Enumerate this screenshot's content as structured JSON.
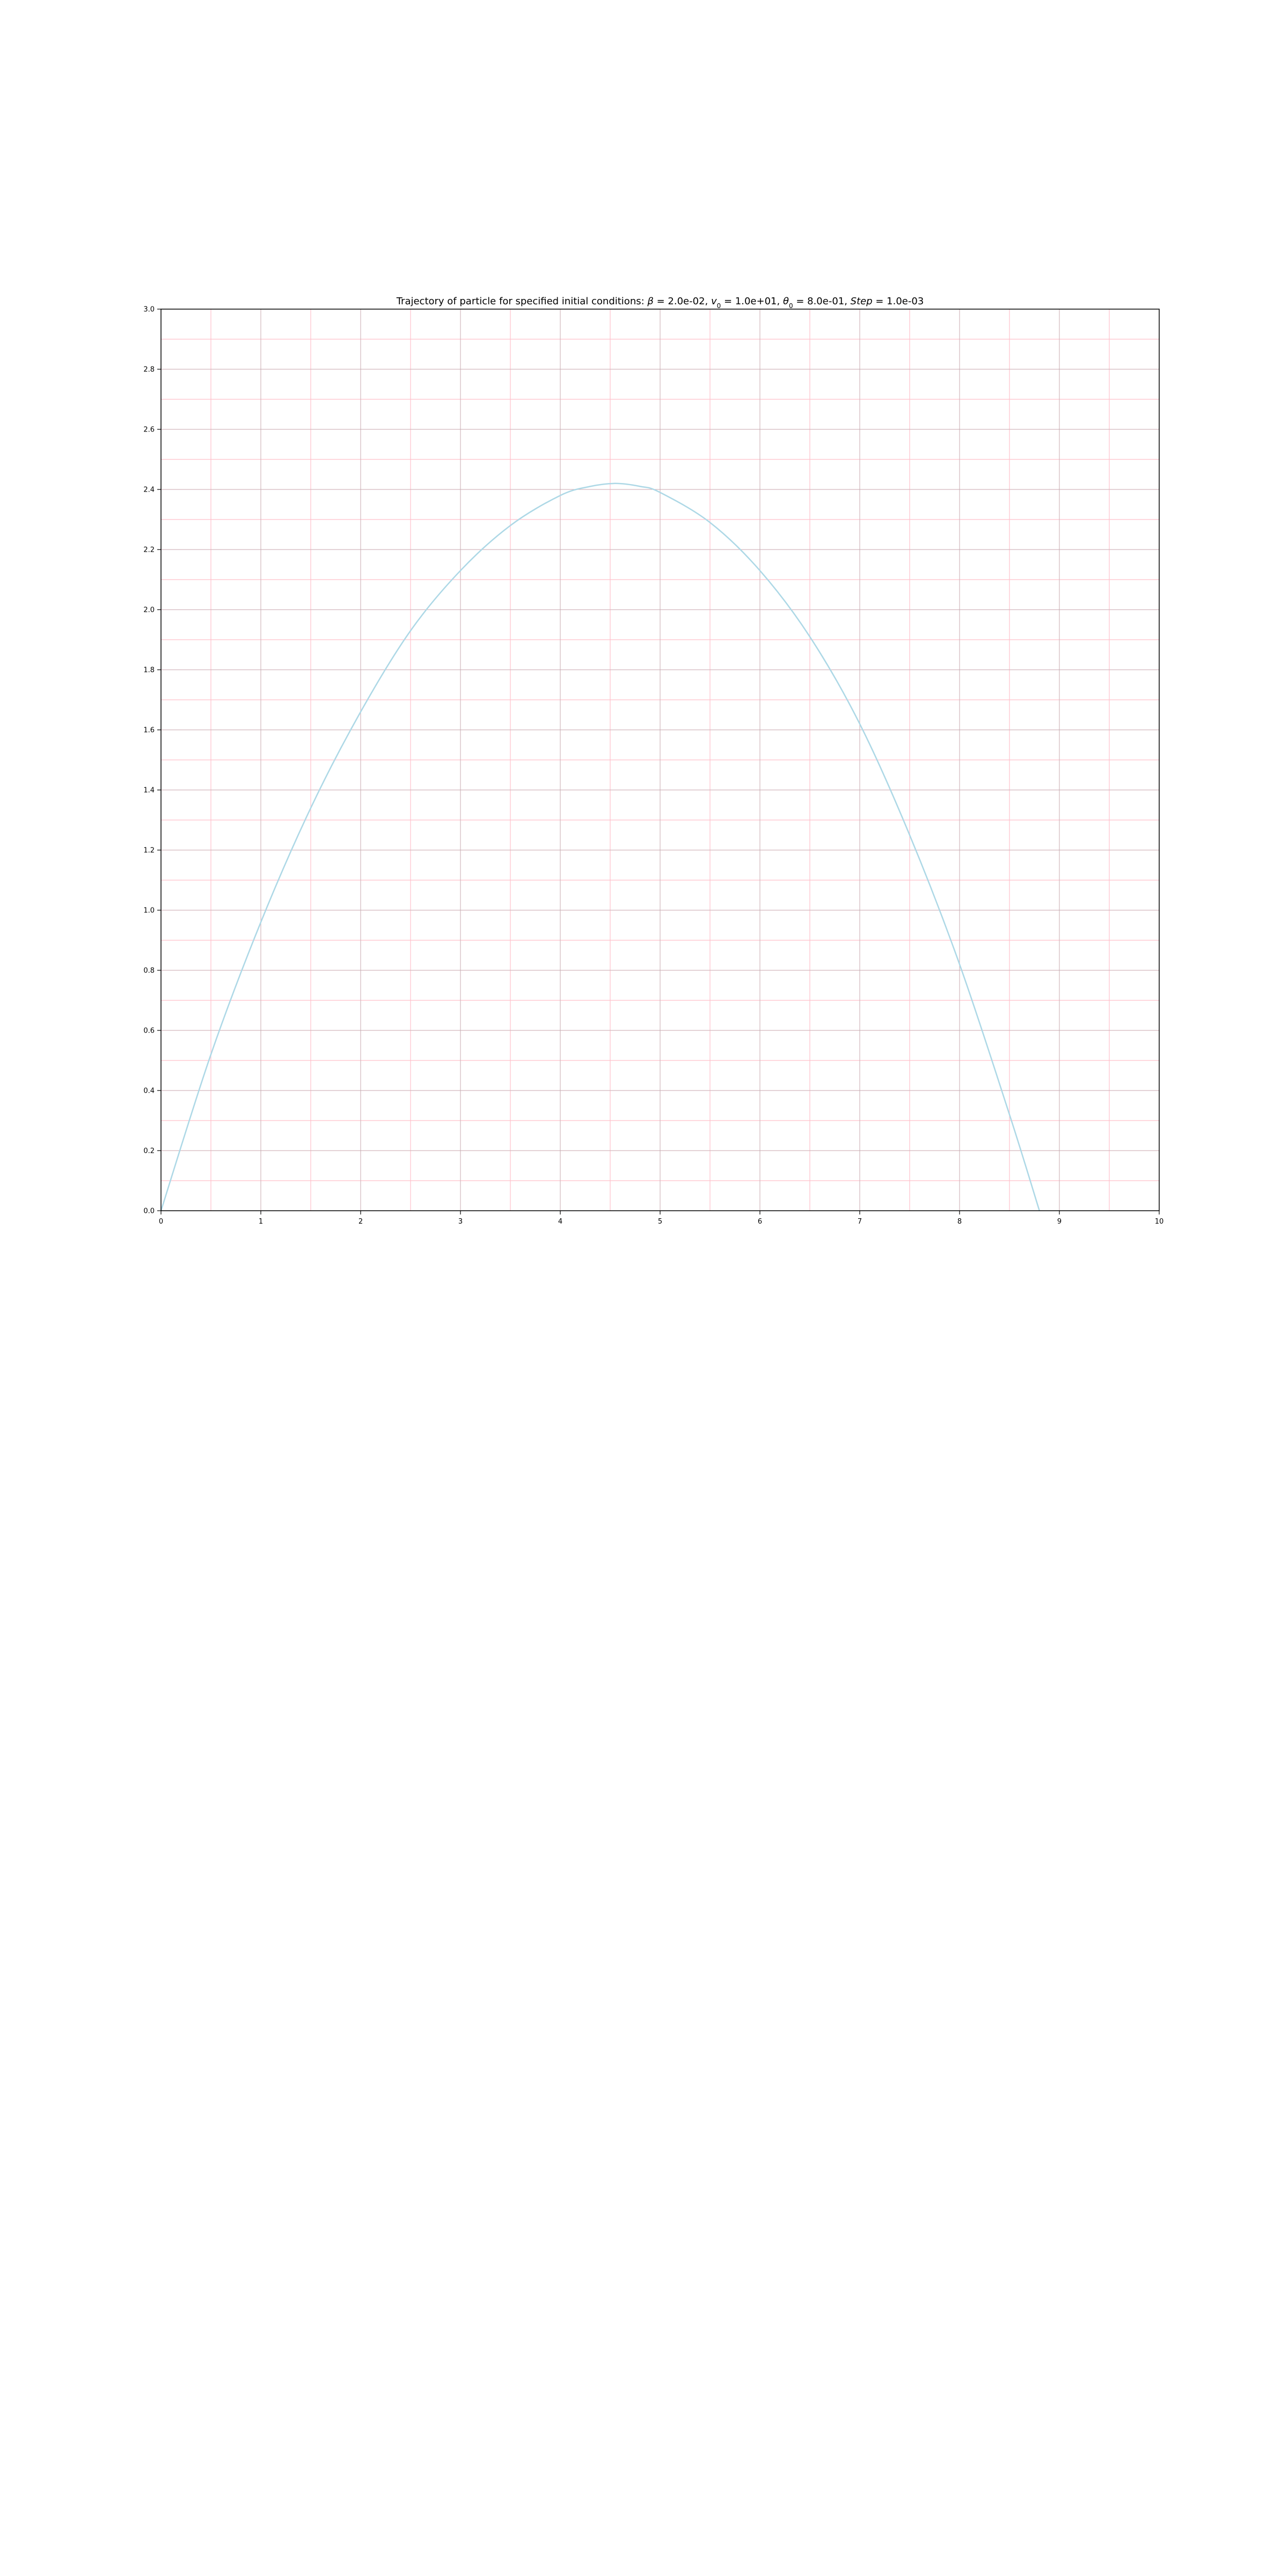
{
  "chart_data": {
    "type": "line",
    "title_parts": {
      "prefix": "Trajectory of particle for specified initial conditions: ",
      "beta_symbol": "β",
      "beta_value": " = 2.0e-02, ",
      "v_symbol": "v",
      "v_sub": "0",
      "v_value": " = 1.0e+01, ",
      "theta_symbol": "θ",
      "theta_sub": "0",
      "theta_value": " = 8.0e-01, ",
      "step_label": "Step",
      "step_value": " = 1.0e-03"
    },
    "xlabel": "",
    "ylabel": "",
    "xlim": [
      0,
      10
    ],
    "ylim": [
      0,
      3.0
    ],
    "x_ticks": [
      0,
      1,
      2,
      3,
      4,
      5,
      6,
      7,
      8,
      9,
      10
    ],
    "x_tick_labels": [
      "0",
      "1",
      "2",
      "3",
      "4",
      "5",
      "6",
      "7",
      "8",
      "9",
      "10"
    ],
    "y_ticks": [
      0.0,
      0.2,
      0.4,
      0.6,
      0.8,
      1.0,
      1.2,
      1.4,
      1.6,
      1.8,
      2.0,
      2.2,
      2.4,
      2.6,
      2.8,
      3.0
    ],
    "y_tick_labels": [
      "0.0",
      "0.2",
      "0.4",
      "0.6",
      "0.8",
      "1.0",
      "1.2",
      "1.4",
      "1.6",
      "1.8",
      "2.0",
      "2.2",
      "2.4",
      "2.6",
      "2.8",
      "3.0"
    ],
    "grid": {
      "major": true,
      "minor": true,
      "major_color": "#b0b0b0",
      "minor_color": "#ffc0cb",
      "x_minor_step": 0.5,
      "y_minor_step": 0.1
    },
    "series": [
      {
        "color": "#add8e6",
        "x": [
          0,
          0.5,
          1.0,
          1.5,
          2.0,
          2.5,
          3.0,
          3.5,
          4.0,
          4.3,
          4.55,
          4.8,
          5.0,
          5.5,
          6.0,
          6.5,
          7.0,
          7.5,
          8.0,
          8.5,
          8.8
        ],
        "y": [
          0,
          0.52,
          0.96,
          1.34,
          1.66,
          1.93,
          2.13,
          2.28,
          2.38,
          2.41,
          2.42,
          2.41,
          2.39,
          2.29,
          2.13,
          1.91,
          1.62,
          1.25,
          0.82,
          0.32,
          0
        ]
      }
    ]
  }
}
